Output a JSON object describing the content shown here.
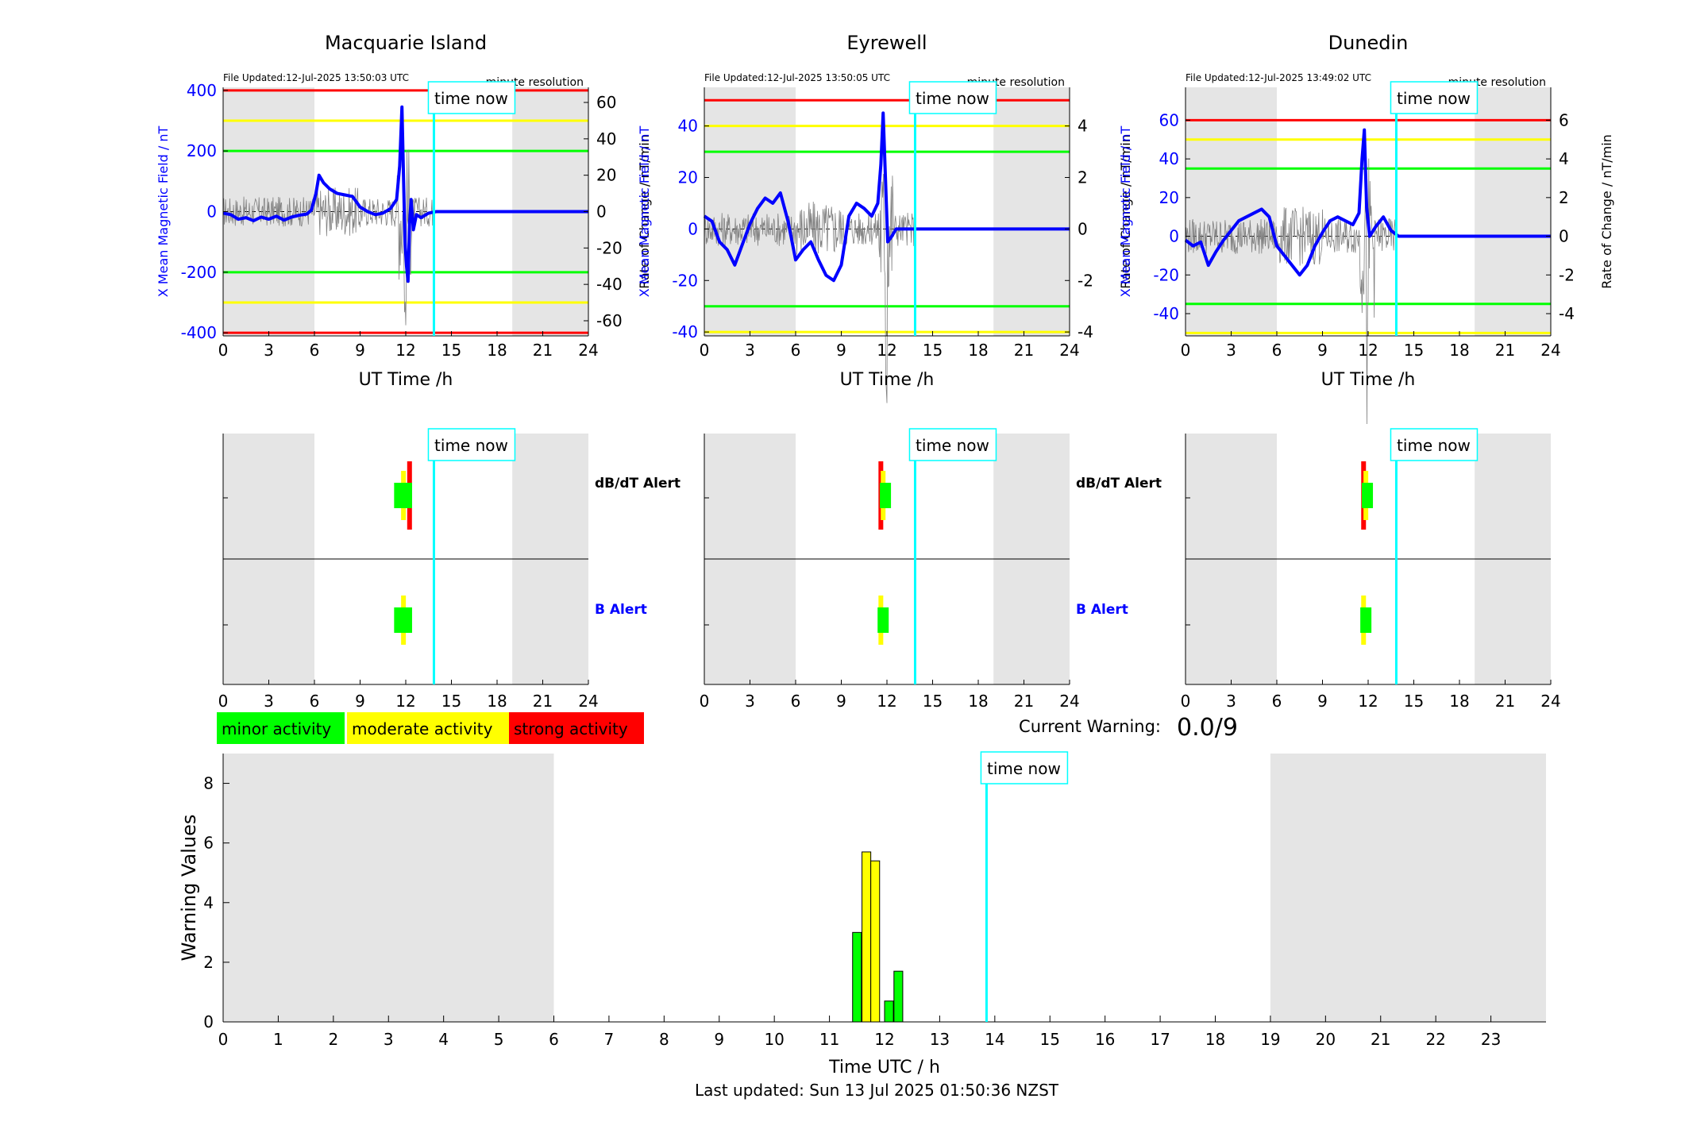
{
  "stations": [
    {
      "name": "Macquarie Island",
      "file_updated": "File Updated:12-Jul-2025 13:50:03 UTC",
      "resolution": "minute resolution",
      "ylabel_left": "X Mean Magnetic Field / nT",
      "ylabel_right": "Rate of Change / nT/min",
      "y_left_ticks": [
        -400,
        -200,
        0,
        200,
        400
      ],
      "y_left_range": [
        -410,
        410
      ],
      "y_right_ticks": [
        -60,
        -40,
        -20,
        0,
        20,
        40,
        60
      ],
      "y_right_range": [
        -68.3,
        68.3
      ],
      "thresholds": {
        "red": 400,
        "yellow": 300,
        "green": 200
      },
      "shade": [
        [
          0,
          6
        ],
        [
          19,
          24
        ]
      ],
      "x_series": [
        [
          0,
          -5
        ],
        [
          0.5,
          -10
        ],
        [
          1,
          -25
        ],
        [
          1.5,
          -20
        ],
        [
          2,
          -30
        ],
        [
          2.5,
          -18
        ],
        [
          3,
          -25
        ],
        [
          3.5,
          -15
        ],
        [
          4,
          -28
        ],
        [
          4.5,
          -18
        ],
        [
          5,
          -12
        ],
        [
          5.5,
          -8
        ],
        [
          5.8,
          5
        ],
        [
          6.1,
          60
        ],
        [
          6.3,
          120
        ],
        [
          6.6,
          95
        ],
        [
          7,
          75
        ],
        [
          7.5,
          60
        ],
        [
          8,
          55
        ],
        [
          8.5,
          50
        ],
        [
          9,
          15
        ],
        [
          9.5,
          0
        ],
        [
          10,
          -10
        ],
        [
          10.5,
          -5
        ],
        [
          11,
          10
        ],
        [
          11.4,
          40
        ],
        [
          11.6,
          150
        ],
        [
          11.75,
          345
        ],
        [
          11.85,
          120
        ],
        [
          11.95,
          -100
        ],
        [
          12.05,
          -180
        ],
        [
          12.15,
          -230
        ],
        [
          12.25,
          -40
        ],
        [
          12.35,
          40
        ],
        [
          12.5,
          -60
        ],
        [
          12.7,
          -10
        ],
        [
          13,
          -20
        ],
        [
          13.5,
          -5
        ],
        [
          14,
          0
        ],
        [
          24,
          0
        ]
      ],
      "dbdt_bars": [
        [
          11.6,
          "green"
        ],
        [
          11.85,
          "yellow"
        ],
        [
          12.05,
          "green"
        ],
        [
          12.25,
          "red"
        ]
      ],
      "b_bars": [
        [
          11.6,
          "green"
        ],
        [
          11.85,
          "yellow"
        ],
        [
          12.05,
          "green"
        ]
      ]
    },
    {
      "name": "Eyrewell",
      "file_updated": "File Updated:12-Jul-2025 13:50:05 UTC",
      "resolution": "minute resolution",
      "ylabel_left": "X Mean Magnetic Field / nT",
      "ylabel_right": "Rate of Change / nT/min",
      "y_left_ticks": [
        -40,
        -20,
        0,
        20,
        40
      ],
      "y_left_range": [
        -41.5,
        55
      ],
      "y_right_ticks": [
        -4,
        -2,
        0,
        2,
        4
      ],
      "y_right_range": [
        -4.15,
        5.5
      ],
      "thresholds": {
        "red": 50,
        "yellow": 40,
        "green": 30
      },
      "shade": [
        [
          0,
          6
        ],
        [
          19,
          24
        ]
      ],
      "x_series": [
        [
          0,
          5
        ],
        [
          0.5,
          3
        ],
        [
          1,
          -5
        ],
        [
          1.5,
          -8
        ],
        [
          2,
          -14
        ],
        [
          2.5,
          -6
        ],
        [
          3,
          2
        ],
        [
          3.5,
          8
        ],
        [
          4,
          12
        ],
        [
          4.5,
          10
        ],
        [
          5,
          14
        ],
        [
          5.5,
          3
        ],
        [
          6,
          -12
        ],
        [
          6.5,
          -8
        ],
        [
          7,
          -5
        ],
        [
          7.5,
          -12
        ],
        [
          8,
          -18
        ],
        [
          8.5,
          -20
        ],
        [
          9,
          -14
        ],
        [
          9.5,
          5
        ],
        [
          10,
          10
        ],
        [
          10.5,
          8
        ],
        [
          11,
          5
        ],
        [
          11.4,
          10
        ],
        [
          11.6,
          25
        ],
        [
          11.75,
          45
        ],
        [
          11.9,
          20
        ],
        [
          12.05,
          -5
        ],
        [
          12.3,
          -3
        ],
        [
          12.6,
          0
        ],
        [
          13,
          0
        ],
        [
          24,
          0
        ]
      ],
      "dbdt_bars": [
        [
          11.6,
          "red"
        ],
        [
          11.75,
          "yellow"
        ],
        [
          11.9,
          "green"
        ]
      ],
      "b_bars": [
        [
          11.6,
          "yellow"
        ],
        [
          11.75,
          "green"
        ]
      ]
    },
    {
      "name": "Dunedin",
      "file_updated": "File Updated:12-Jul-2025 13:49:02 UTC",
      "resolution": "minute resolution",
      "ylabel_left": "X Mean Magnetic Field / nT",
      "ylabel_right": "Rate of Change / nT/min",
      "y_left_ticks": [
        -40,
        -20,
        0,
        20,
        40,
        60
      ],
      "y_left_range": [
        -51.5,
        77
      ],
      "y_right_ticks": [
        -4,
        -2,
        0,
        2,
        4,
        6
      ],
      "y_right_range": [
        -5.15,
        7.7
      ],
      "thresholds": {
        "red": 60,
        "yellow": 50,
        "green": 35
      },
      "shade": [
        [
          0,
          6
        ],
        [
          19,
          24
        ]
      ],
      "x_series": [
        [
          0,
          -2
        ],
        [
          0.5,
          -5
        ],
        [
          1,
          -3
        ],
        [
          1.5,
          -15
        ],
        [
          2,
          -8
        ],
        [
          2.5,
          -2
        ],
        [
          3,
          3
        ],
        [
          3.5,
          8
        ],
        [
          4,
          10
        ],
        [
          4.5,
          12
        ],
        [
          5,
          14
        ],
        [
          5.5,
          10
        ],
        [
          6,
          -5
        ],
        [
          6.5,
          -10
        ],
        [
          7,
          -15
        ],
        [
          7.5,
          -20
        ],
        [
          8,
          -15
        ],
        [
          8.5,
          -5
        ],
        [
          9,
          2
        ],
        [
          9.5,
          8
        ],
        [
          10,
          10
        ],
        [
          10.5,
          8
        ],
        [
          11,
          6
        ],
        [
          11.4,
          12
        ],
        [
          11.6,
          40
        ],
        [
          11.75,
          55
        ],
        [
          11.9,
          15
        ],
        [
          12.1,
          0
        ],
        [
          12.5,
          5
        ],
        [
          13,
          10
        ],
        [
          13.5,
          3
        ],
        [
          14,
          0
        ],
        [
          24,
          0
        ]
      ],
      "dbdt_bars": [
        [
          11.7,
          "red"
        ],
        [
          11.85,
          "yellow"
        ],
        [
          11.95,
          "green"
        ]
      ],
      "b_bars": [
        [
          11.7,
          "yellow"
        ],
        [
          11.85,
          "green"
        ]
      ]
    }
  ],
  "time_now_label": "time now",
  "time_now_hour": 13.85,
  "top_xlabel": "UT Time /h",
  "alert_labels": {
    "dbdt": "dB/dT Alert",
    "b": "B Alert"
  },
  "alert_x_ticks": [
    0,
    3,
    6,
    9,
    12,
    15,
    18,
    21,
    24
  ],
  "legend": {
    "minor": "minor activity",
    "moderate": "moderate activity",
    "strong": "strong activity"
  },
  "colors": {
    "minor": "#00ff00",
    "moderate": "#ffff00",
    "strong": "#ff0000",
    "now": "#00ffff",
    "shade": "#e5e5e5",
    "field": "#0000ff"
  },
  "current_warning_label": "Current Warning:",
  "current_warning_value": "0.0/9",
  "chart_data": {
    "type": "bar",
    "xlabel": "Time UTC / h",
    "ylabel": "Warning Values",
    "xlim": [
      0,
      24
    ],
    "ylim": [
      0,
      9
    ],
    "x_ticks": [
      0,
      1,
      2,
      3,
      4,
      5,
      6,
      7,
      8,
      9,
      10,
      11,
      12,
      13,
      14,
      15,
      16,
      17,
      18,
      19,
      20,
      21,
      22,
      23
    ],
    "y_ticks": [
      0,
      2,
      4,
      6,
      8
    ],
    "shade": [
      [
        0,
        6
      ],
      [
        19,
        24
      ]
    ],
    "bars": [
      {
        "x": 11.5,
        "value": 3.0,
        "level": "minor"
      },
      {
        "x": 11.67,
        "value": 5.7,
        "level": "moderate"
      },
      {
        "x": 11.83,
        "value": 5.4,
        "level": "moderate"
      },
      {
        "x": 12.08,
        "value": 0.7,
        "level": "minor"
      },
      {
        "x": 12.25,
        "value": 1.7,
        "level": "minor"
      }
    ]
  },
  "footer": "Last updated: Sun 13 Jul 2025 01:50:36 NZST"
}
